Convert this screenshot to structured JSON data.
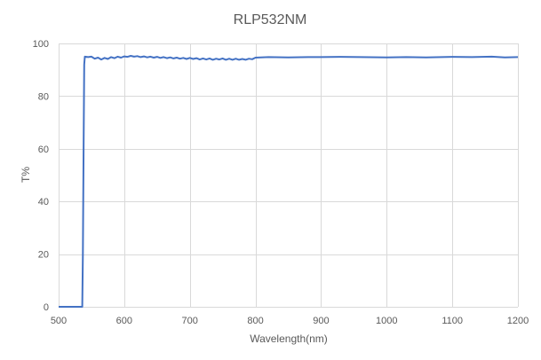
{
  "chart_data": {
    "type": "line",
    "title": "RLP532NM",
    "xlabel": "Wavelength(nm)",
    "ylabel": "T%",
    "xlim": [
      500,
      1200
    ],
    "ylim": [
      0,
      100
    ],
    "x_ticks": [
      500,
      600,
      700,
      800,
      900,
      1000,
      1100,
      1200
    ],
    "y_ticks": [
      0,
      20,
      40,
      60,
      80,
      100
    ],
    "grid": {
      "vertical": true,
      "horizontal": true
    },
    "legend": null,
    "series": [
      {
        "name": "T%",
        "color": "#4472c4",
        "x": [
          500,
          520,
          536,
          537,
          538,
          539,
          540,
          545,
          550,
          555,
          560,
          565,
          570,
          575,
          580,
          585,
          590,
          595,
          600,
          605,
          610,
          615,
          620,
          625,
          630,
          635,
          640,
          645,
          650,
          655,
          660,
          665,
          670,
          675,
          680,
          685,
          690,
          695,
          700,
          705,
          710,
          715,
          720,
          725,
          730,
          735,
          740,
          745,
          750,
          755,
          760,
          765,
          770,
          775,
          780,
          785,
          790,
          795,
          800,
          820,
          850,
          880,
          900,
          930,
          960,
          1000,
          1030,
          1060,
          1100,
          1130,
          1160,
          1180,
          1200
        ],
        "values": [
          0,
          0,
          0,
          20,
          60,
          92,
          95,
          94.8,
          95,
          94.2,
          94.6,
          93.9,
          94.5,
          94.1,
          94.8,
          94.4,
          95.0,
          94.6,
          95.1,
          94.9,
          95.3,
          95.0,
          95.2,
          94.8,
          95.1,
          94.7,
          95.0,
          94.6,
          94.9,
          94.5,
          94.8,
          94.4,
          94.7,
          94.3,
          94.6,
          94.2,
          94.5,
          94.1,
          94.5,
          94.1,
          94.4,
          93.9,
          94.3,
          93.9,
          94.3,
          93.8,
          94.2,
          93.9,
          94.3,
          93.8,
          94.2,
          93.8,
          94.2,
          93.8,
          94.1,
          93.8,
          94.2,
          94.0,
          94.6,
          94.8,
          94.7,
          94.8,
          94.8,
          94.9,
          94.8,
          94.7,
          94.8,
          94.7,
          94.9,
          94.8,
          95.0,
          94.7,
          94.8
        ]
      }
    ]
  }
}
